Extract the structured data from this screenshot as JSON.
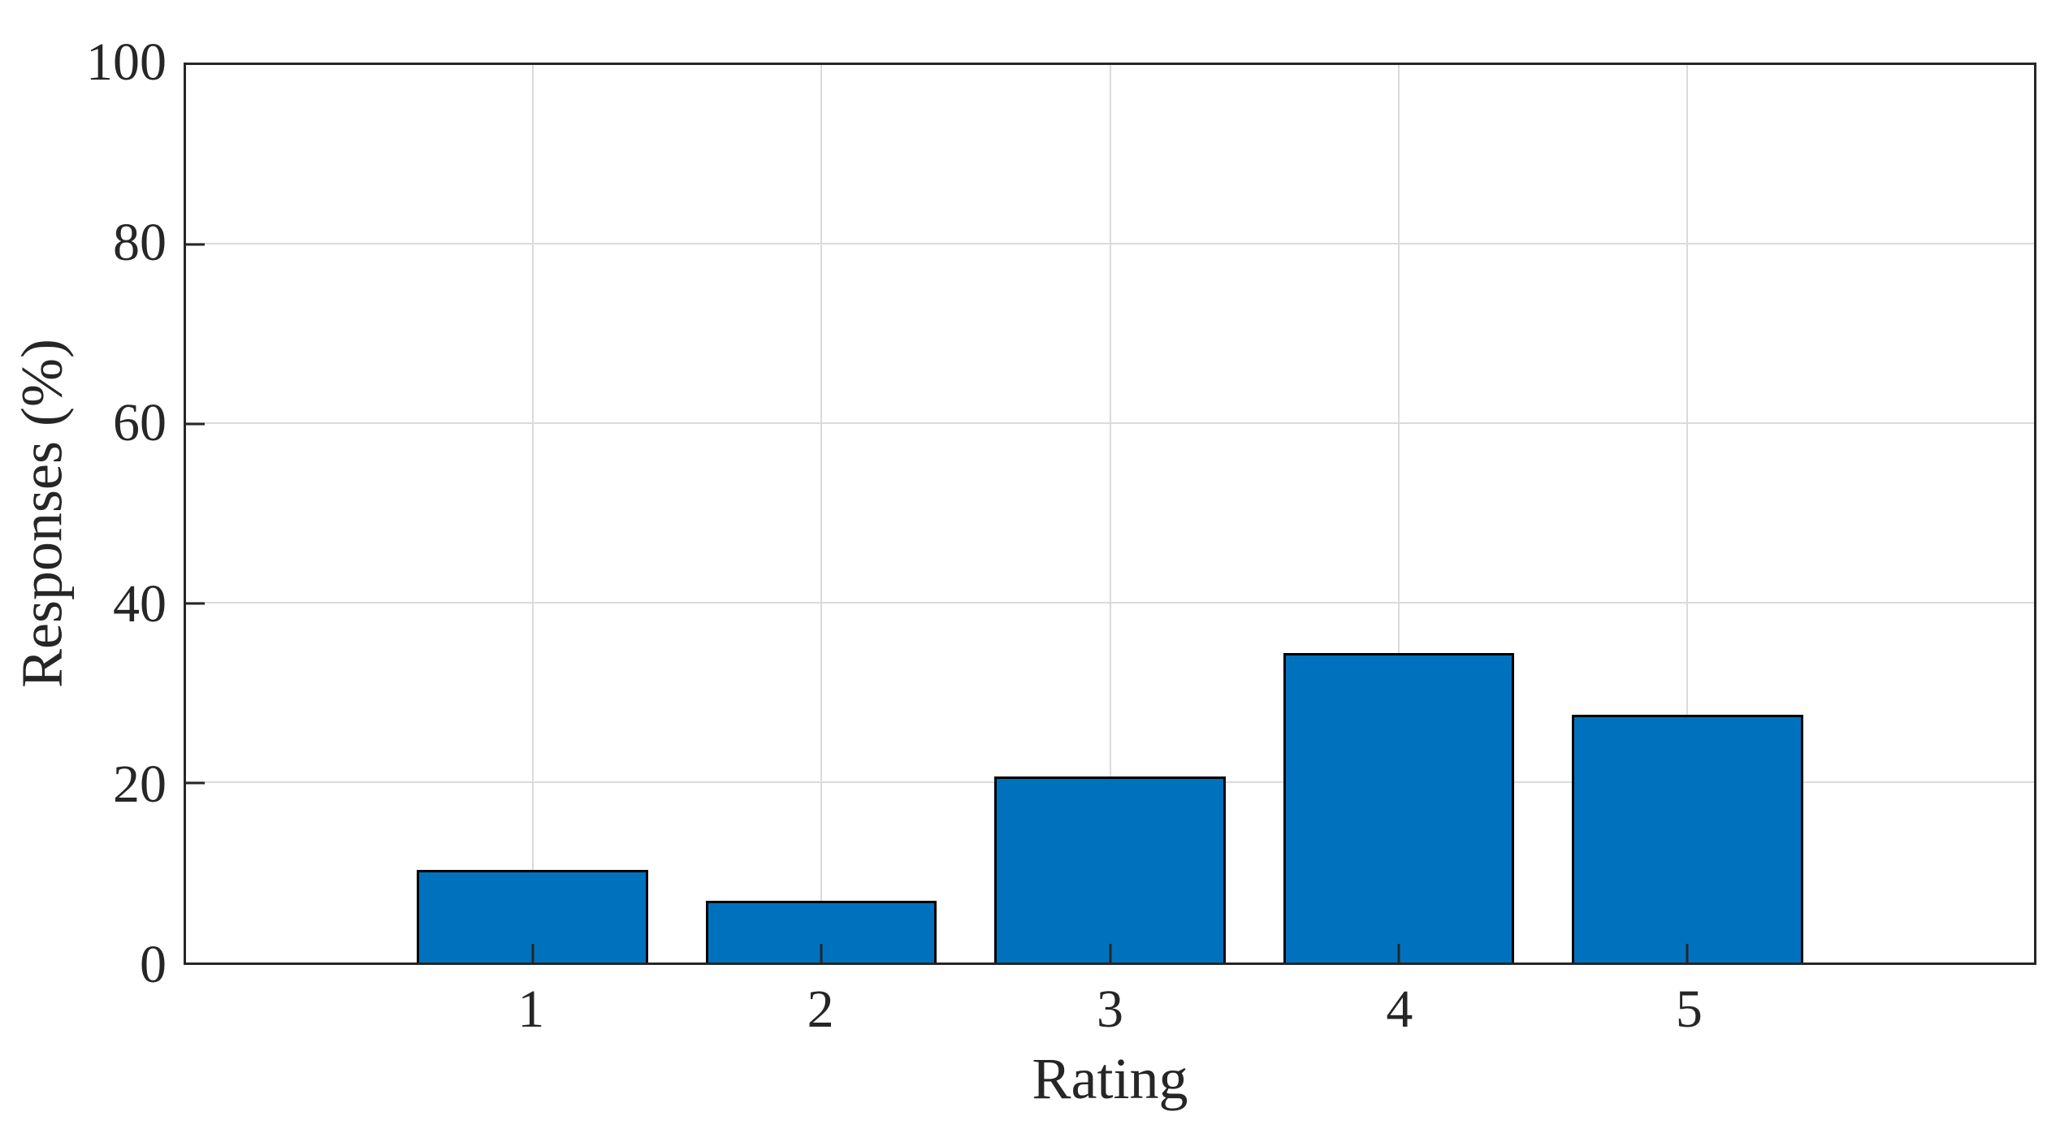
{
  "chart_data": {
    "type": "bar",
    "categories": [
      "1",
      "2",
      "3",
      "4",
      "5"
    ],
    "values": [
      10.3,
      6.9,
      20.7,
      34.5,
      27.6
    ],
    "title": "",
    "xlabel": "Rating",
    "ylabel": "Responses (%)",
    "ylim": [
      0,
      100
    ],
    "yticks": [
      0,
      20,
      40,
      60,
      80,
      100
    ],
    "ytick_labels": [
      "0",
      "20",
      "40",
      "60",
      "80",
      "100"
    ],
    "xlim": [
      -0.2,
      6.2
    ],
    "bar_width_units": 0.8,
    "grid": true,
    "legend_position": "none",
    "colors": {
      "bar_fill": "#0072BD",
      "bar_edge": "#000000",
      "axis": "#262626",
      "grid": "#DBDBDB",
      "text": "#262626"
    }
  }
}
